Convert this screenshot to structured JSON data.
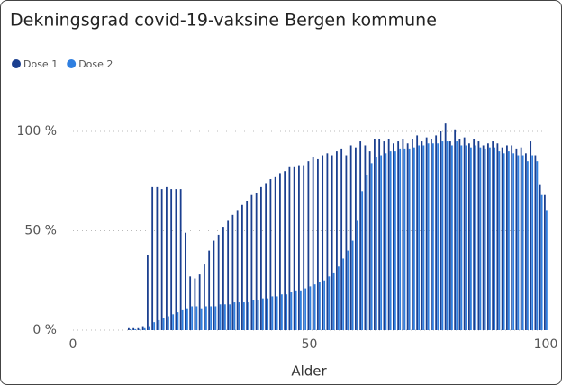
{
  "chart_data": {
    "type": "bar",
    "title": "Dekningsgrad covid-19-vaksine Bergen kommune",
    "x_label": "Alder",
    "x": [
      0,
      1,
      2,
      3,
      4,
      5,
      6,
      7,
      8,
      9,
      10,
      11,
      12,
      13,
      14,
      15,
      16,
      17,
      18,
      19,
      20,
      21,
      22,
      23,
      24,
      25,
      26,
      27,
      28,
      29,
      30,
      31,
      32,
      33,
      34,
      35,
      36,
      37,
      38,
      39,
      40,
      41,
      42,
      43,
      44,
      45,
      46,
      47,
      48,
      49,
      50,
      51,
      52,
      53,
      54,
      55,
      56,
      57,
      58,
      59,
      60,
      61,
      62,
      63,
      64,
      65,
      66,
      67,
      68,
      69,
      70,
      71,
      72,
      73,
      74,
      75,
      76,
      77,
      78,
      79,
      80,
      81,
      82,
      83,
      84,
      85,
      86,
      87,
      88,
      89,
      90,
      91,
      92,
      93,
      94,
      95,
      96,
      97,
      98,
      99,
      100
    ],
    "series": [
      {
        "name": "Dose 1",
        "color": "#1b3f8f",
        "values": [
          0,
          0,
          0,
          0,
          0,
          0,
          0,
          0,
          0,
          0,
          0,
          0,
          1,
          1,
          1,
          2,
          38,
          72,
          72,
          71,
          72,
          71,
          71,
          71,
          49,
          27,
          26,
          28,
          33,
          40,
          45,
          48,
          52,
          55,
          58,
          60,
          63,
          65,
          68,
          69,
          72,
          74,
          76,
          77,
          79,
          80,
          82,
          82,
          83,
          83,
          85,
          87,
          86,
          88,
          89,
          88,
          90,
          91,
          88,
          93,
          92,
          95,
          93,
          90,
          96,
          96,
          95,
          96,
          94,
          95,
          96,
          94,
          96,
          98,
          95,
          97,
          96,
          98,
          100,
          104,
          95,
          101,
          96,
          97,
          94,
          96,
          95,
          93,
          94,
          95,
          94,
          92,
          93,
          93,
          91,
          92,
          89,
          95,
          88,
          73,
          68
        ]
      },
      {
        "name": "Dose 2",
        "color": "#2f7fe0",
        "values": [
          0,
          0,
          0,
          0,
          0,
          0,
          0,
          0,
          0,
          0,
          0,
          0,
          0.5,
          0.5,
          0.5,
          1,
          2,
          4,
          5,
          6,
          7,
          8,
          9,
          10,
          11,
          12,
          12,
          11,
          12,
          12,
          12,
          13,
          13,
          13,
          14,
          14,
          14,
          14,
          15,
          15,
          16,
          16,
          17,
          17,
          18,
          18,
          19,
          20,
          20,
          21,
          22,
          23,
          24,
          25,
          27,
          29,
          32,
          36,
          40,
          45,
          55,
          70,
          78,
          84,
          87,
          88,
          89,
          90,
          90,
          91,
          91,
          91,
          92,
          93,
          93,
          94,
          94,
          94,
          95,
          95,
          93,
          95,
          93,
          93,
          92,
          93,
          92,
          91,
          92,
          92,
          90,
          89,
          90,
          89,
          88,
          88,
          85,
          88,
          85,
          68,
          60
        ]
      }
    ],
    "xlim": [
      0,
      100
    ],
    "xticks": [
      0,
      50,
      100
    ],
    "ylim": [
      0,
      110
    ],
    "yticks": [
      {
        "value": 0,
        "label": "0 %"
      },
      {
        "value": 50,
        "label": "50 %"
      },
      {
        "value": 100,
        "label": "100 %"
      }
    ],
    "grid": true,
    "legend": "top-left"
  }
}
